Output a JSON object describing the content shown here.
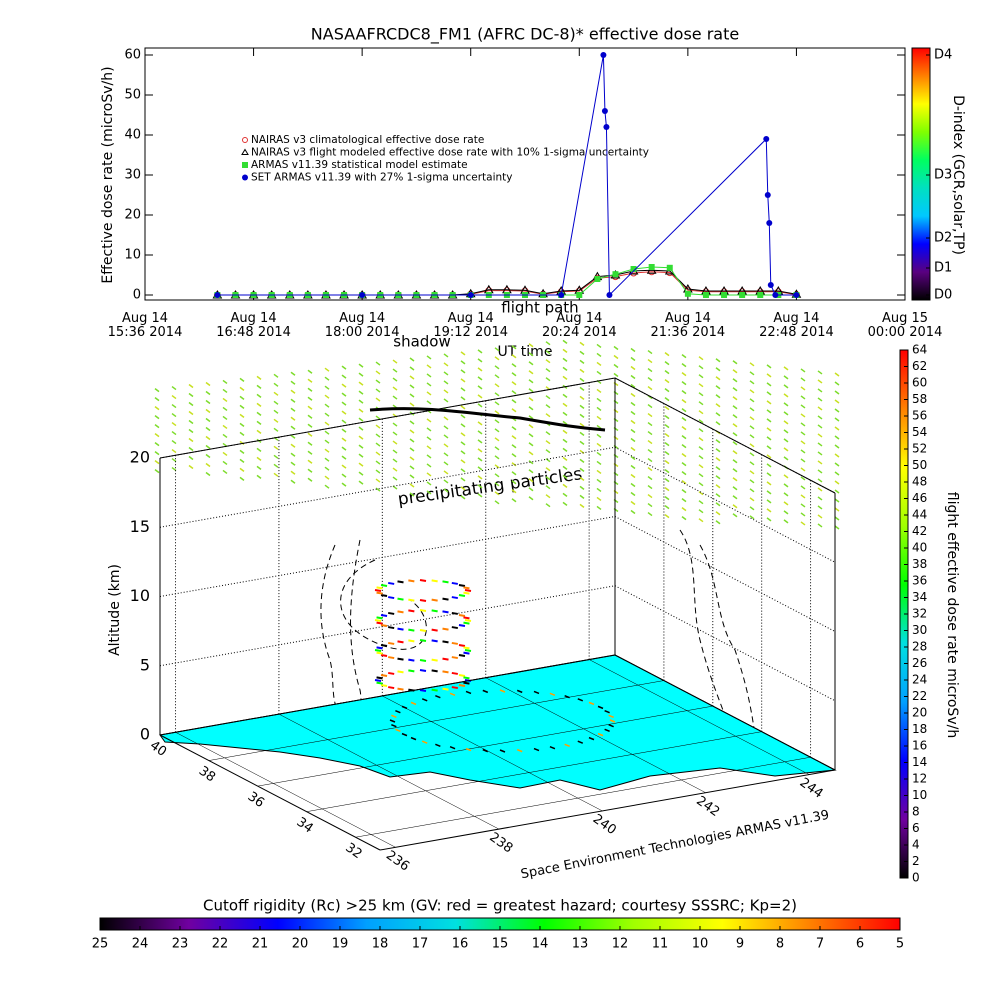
{
  "chart_data": [
    {
      "type": "line",
      "title": "NASAAFRCDC8_FM1 (AFRC DC-8)* effective dose rate",
      "ylabel": "Effective dose rate (microSv/h)",
      "xlabel": "UT time",
      "xlim": [
        "2014-08-14T15:36",
        "2014-08-15T00:00"
      ],
      "xticks": [
        {
          "value": "2014-08-14T15:36",
          "label": "Aug 14\n15:36 2014"
        },
        {
          "value": "2014-08-14T16:48",
          "label": "Aug 14\n16:48 2014"
        },
        {
          "value": "2014-08-14T18:00",
          "label": "Aug 14\n18:00 2014"
        },
        {
          "value": "2014-08-14T19:12",
          "label": "Aug 14\n19:12 2014"
        },
        {
          "value": "2014-08-14T20:24",
          "label": "Aug 14\n20:24 2014"
        },
        {
          "value": "2014-08-14T21:36",
          "label": "Aug 14\n21:36 2014"
        },
        {
          "value": "2014-08-14T22:48",
          "label": "Aug 14\n22:48 2014"
        },
        {
          "value": "2014-08-15T00:00",
          "label": "Aug 15\n00:00 2014"
        }
      ],
      "ylim": [
        -1.25,
        61.75
      ],
      "yticks": [
        0,
        10,
        20,
        30,
        40,
        50,
        60
      ],
      "series": [
        {
          "name": "NAIRAS v3 climatological effective dose rate",
          "color": "#e03030",
          "marker": "circle",
          "x": [
            "2014-08-14T16:24",
            "2014-08-14T16:36",
            "2014-08-14T16:48",
            "2014-08-14T17:00",
            "2014-08-14T17:12",
            "2014-08-14T17:24",
            "2014-08-14T17:36",
            "2014-08-14T17:48",
            "2014-08-14T18:00",
            "2014-08-14T18:12",
            "2014-08-14T18:24",
            "2014-08-14T18:36",
            "2014-08-14T18:48",
            "2014-08-14T19:00",
            "2014-08-14T19:12",
            "2014-08-14T19:24",
            "2014-08-14T19:36",
            "2014-08-14T19:48",
            "2014-08-14T20:00",
            "2014-08-14T20:12",
            "2014-08-14T20:24",
            "2014-08-14T20:36",
            "2014-08-14T20:48",
            "2014-08-14T21:00",
            "2014-08-14T21:12",
            "2014-08-14T21:24",
            "2014-08-14T21:36",
            "2014-08-14T21:48",
            "2014-08-14T22:00",
            "2014-08-14T22:12",
            "2014-08-14T22:24",
            "2014-08-14T22:36",
            "2014-08-14T22:48"
          ],
          "values": [
            0,
            0,
            0,
            0,
            0,
            0,
            0,
            0,
            0,
            0,
            0,
            0,
            0,
            0,
            0.2,
            1.1,
            1.1,
            1.0,
            0.2,
            0.8,
            1.0,
            4.2,
            4.6,
            5.5,
            5.8,
            5.6,
            1.2,
            0.8,
            0.8,
            0.8,
            0.8,
            0.8,
            0.1
          ]
        },
        {
          "name": "NAIRAS v3 flight modeled effective dose rate with 10% 1-sigma uncertainty",
          "color": "#000000",
          "marker": "triangle",
          "x": [
            "2014-08-14T16:24",
            "2014-08-14T16:36",
            "2014-08-14T16:48",
            "2014-08-14T17:00",
            "2014-08-14T17:12",
            "2014-08-14T17:24",
            "2014-08-14T17:36",
            "2014-08-14T17:48",
            "2014-08-14T18:00",
            "2014-08-14T18:12",
            "2014-08-14T18:24",
            "2014-08-14T18:36",
            "2014-08-14T18:48",
            "2014-08-14T19:00",
            "2014-08-14T19:12",
            "2014-08-14T19:24",
            "2014-08-14T19:36",
            "2014-08-14T19:48",
            "2014-08-14T20:00",
            "2014-08-14T20:12",
            "2014-08-14T20:24",
            "2014-08-14T20:36",
            "2014-08-14T20:48",
            "2014-08-14T21:00",
            "2014-08-14T21:12",
            "2014-08-14T21:24",
            "2014-08-14T21:36",
            "2014-08-14T21:48",
            "2014-08-14T22:00",
            "2014-08-14T22:12",
            "2014-08-14T22:24",
            "2014-08-14T22:36",
            "2014-08-14T22:48"
          ],
          "values": [
            0,
            0,
            0,
            0,
            0,
            0,
            0,
            0,
            0,
            0,
            0,
            0,
            0,
            0,
            0.3,
            1.3,
            1.3,
            1.2,
            0.3,
            1.0,
            1.2,
            4.6,
            5.0,
            6.0,
            6.2,
            6.0,
            1.5,
            1.0,
            1.0,
            1.0,
            1.0,
            1.0,
            0.2
          ]
        },
        {
          "name": "ARMAS v11.39 statistical model estimate",
          "color": "#33dd33",
          "marker": "square",
          "x": [
            "2014-08-14T16:24",
            "2014-08-14T16:36",
            "2014-08-14T16:48",
            "2014-08-14T17:00",
            "2014-08-14T17:12",
            "2014-08-14T17:24",
            "2014-08-14T17:36",
            "2014-08-14T17:48",
            "2014-08-14T18:00",
            "2014-08-14T18:12",
            "2014-08-14T18:24",
            "2014-08-14T18:36",
            "2014-08-14T18:48",
            "2014-08-14T19:00",
            "2014-08-14T19:12",
            "2014-08-14T19:24",
            "2014-08-14T19:36",
            "2014-08-14T19:48",
            "2014-08-14T20:00",
            "2014-08-14T20:12",
            "2014-08-14T20:24",
            "2014-08-14T20:36",
            "2014-08-14T20:48",
            "2014-08-14T21:00",
            "2014-08-14T21:12",
            "2014-08-14T21:24",
            "2014-08-14T21:36",
            "2014-08-14T21:48",
            "2014-08-14T22:00",
            "2014-08-14T22:12",
            "2014-08-14T22:24",
            "2014-08-14T22:36",
            "2014-08-14T22:48"
          ],
          "values": [
            0,
            0,
            0,
            0,
            0,
            0,
            0,
            0,
            0,
            0,
            0,
            0,
            0,
            0,
            0,
            0,
            0,
            0,
            0,
            0,
            0,
            4.0,
            5.2,
            6.5,
            7.0,
            6.8,
            0.3,
            0,
            0,
            0,
            0,
            0,
            0
          ]
        },
        {
          "name": "SET ARMAS v11.39 with 27% 1-sigma uncertainty",
          "color": "#0000cc",
          "marker": "dot",
          "x": [
            "2014-08-14T16:24",
            "2014-08-14T18:00",
            "2014-08-14T19:12",
            "2014-08-14T20:12",
            "2014-08-14T20:40",
            "2014-08-14T20:41",
            "2014-08-14T20:42",
            "2014-08-14T20:44",
            "2014-08-14T22:28",
            "2014-08-14T22:29",
            "2014-08-14T22:30",
            "2014-08-14T22:31",
            "2014-08-14T22:34",
            "2014-08-14T22:48"
          ],
          "values": [
            0,
            0,
            0,
            0,
            60,
            46,
            42,
            0,
            39,
            25,
            18,
            2.5,
            0,
            0
          ]
        }
      ],
      "colorbar": {
        "label": "D-index (GCR,solar,TP)",
        "clim": [
          -1.25,
          61.75
        ],
        "ticks": [
          {
            "value": 0,
            "label": "D0"
          },
          {
            "value": 6.75,
            "label": "D1"
          },
          {
            "value": 14.25,
            "label": "D2"
          },
          {
            "value": 30,
            "label": "D3"
          },
          {
            "value": 60,
            "label": "D4"
          }
        ],
        "colors": [
          "#000000",
          "#5a0080",
          "#0000ff",
          "#00c8ff",
          "#00e0c0",
          "#00ff60",
          "#80ff00",
          "#ffff00",
          "#ff8000",
          "#ff0000"
        ]
      }
    },
    {
      "type": "scatter3d",
      "zlabel": "Altitude (km)",
      "zlim": [
        0,
        20
      ],
      "zticks": [
        0,
        5,
        10,
        15,
        20
      ],
      "ylim": [
        40,
        31
      ],
      "yticks": [
        40,
        38,
        36,
        34,
        32
      ],
      "xlim": [
        235.7,
        244.5
      ],
      "xticks": [
        236,
        238,
        240,
        242,
        244
      ],
      "annotations": [
        "precipitating particles",
        "flight path",
        "shadow"
      ],
      "credit": "Space Environment Technologies ARMAS v11.39",
      "colorbar": {
        "label": "flight effective dose rate microSv/h",
        "clim": [
          0,
          64
        ],
        "ticks": [
          0,
          2,
          4,
          6,
          8,
          10,
          12,
          14,
          16,
          18,
          20,
          22,
          24,
          26,
          28,
          30,
          32,
          34,
          36,
          38,
          40,
          42,
          44,
          46,
          48,
          50,
          52,
          54,
          56,
          58,
          60,
          62,
          64
        ],
        "colors": [
          "#000000",
          "#7000a0",
          "#0000ff",
          "#00a0ff",
          "#00e0e0",
          "#00ff00",
          "#a0ff00",
          "#ffff00",
          "#ff8000",
          "#ff0000"
        ]
      },
      "floor_colorbar": {
        "title": "Cutoff rigidity (Rc) >25 km (GV: red = greatest hazard; courtesy SSSRC; Kp=2)",
        "lim": [
          25,
          5
        ],
        "ticks": [
          25,
          24,
          23,
          22,
          21,
          20,
          19,
          18,
          17,
          16,
          15,
          14,
          13,
          12,
          11,
          10,
          9,
          8,
          7,
          6,
          5
        ],
        "colors": [
          "#000000",
          "#7000a0",
          "#0000ff",
          "#00a0ff",
          "#00e0e0",
          "#00ff00",
          "#a0ff00",
          "#ffff00",
          "#ff8000",
          "#ff0000"
        ]
      }
    }
  ]
}
